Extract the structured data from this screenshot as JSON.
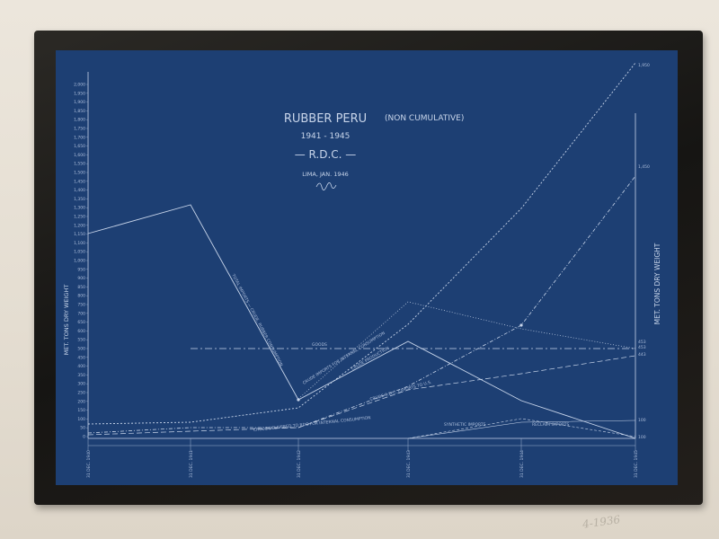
{
  "blueprint": {
    "title": "RUBBER PERU",
    "title_paren": "(NON CUMULATIVE)",
    "years": "1941 - 1945",
    "org": "— R.D.C. —",
    "place_date": "LIMA, JAN. 1946",
    "signature": "signature",
    "left_axis_label": "MET. TONS DRY WEIGHT",
    "right_axis_label": "MET. TONS DRY WEIGHT",
    "left_ticks": [
      "2,000",
      "1,950",
      "1,900",
      "1,850",
      "1,800",
      "1,750",
      "1,700",
      "1,650",
      "1,600",
      "1,550",
      "1,500",
      "1,450",
      "1,400",
      "1,350",
      "1,300",
      "1,250",
      "1,200",
      "1,150",
      "1,100",
      "1,050",
      "1,000",
      "950",
      "900",
      "850",
      "800",
      "750",
      "700",
      "650",
      "600",
      "550",
      "500",
      "450",
      "400",
      "350",
      "300",
      "250",
      "200",
      "150",
      "100",
      "50",
      "0"
    ],
    "x_labels": [
      "31 DEC. 1940",
      "31 DEC. 1941",
      "31 DEC. 1942",
      "31 DEC. 1943",
      "31 DEC. 1944",
      "31 DEC. 1945"
    ],
    "right_values": [
      "1,950",
      "1,450",
      "453",
      "443",
      "453",
      "100",
      "100"
    ],
    "line_labels": {
      "total_imports": "TOTAL IMPORTS — CRUDE, RUBBER CONSUMPTION",
      "crude_imports": "CRUDE IMPORTS FOR INTERNAL CONSUMPTION",
      "crude_production": "CRUDE PRODUCTION",
      "crude_rdc_exports": "CRUDE R.D.C. EXPORTS TO U.S.",
      "crude_delivered": "CRUDE DELIVERED TO RDC FOR INTERNAL CONSUMPTION",
      "synthetic_imports": "SYNTHETIC IMPORTS",
      "reclaim_imports": "RECLAIM IMPORTS",
      "goods": "GOODS"
    }
  },
  "wall_note": "4-1936",
  "colors": {
    "blueprint": "#1d3f73",
    "line": "#c8d5ea",
    "frame": "#1a1815",
    "wall": "#e9e3d8"
  }
}
